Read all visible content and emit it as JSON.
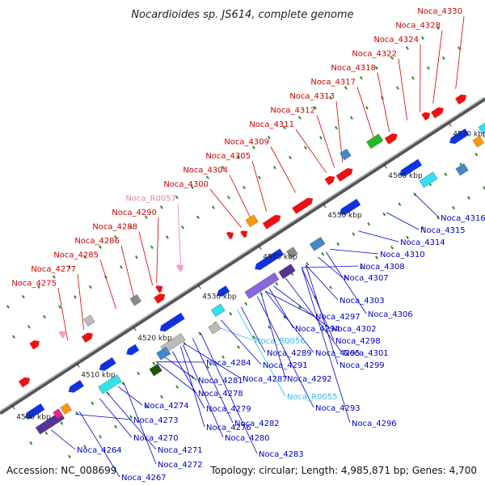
{
  "title": "Nocardioides sp. JS614, complete genome",
  "footer": {
    "accession": "Accession: NC_008699",
    "summary": "Topology: circular; Length: 4,985,871 bp; Genes: 4,700"
  },
  "colors": {
    "top_strand_label": "#cc0000",
    "bottom_strand_label": "#0000cc",
    "rna_top_label": "#e87fb0",
    "rna_bottom_label": "#33bbee"
  },
  "ticks": [
    "4500 kbp",
    "4510 kbp",
    "4520 kbp",
    "4530 kbp",
    "4540 kbp",
    "4550 kbp",
    "4560 kbp",
    "4570 kbp"
  ],
  "top_labels": [
    "Noca_4330",
    "Noca_4328",
    "Noca_4324",
    "Noca_4322",
    "Noca_4318",
    "Noca_4317",
    "Noca_4313",
    "Noca_4312",
    "Noca_4311",
    "Noca_4309",
    "Noca_4305",
    "Noca_4304",
    "Noca_4300",
    "Noca_R0057",
    "Noca_4290",
    "Noca_4288",
    "Noca_4286",
    "Noca_4285",
    "Noca_4277",
    "Noca_4275"
  ],
  "bottom_labels": [
    "Noca_4316",
    "Noca_4315",
    "Noca_4314",
    "Noca_4310",
    "Noca_4308",
    "Noca_4307",
    "Noca_4303",
    "Noca_4306",
    "Noca_4297",
    "Noca_4302",
    "Noca_4294",
    "Noca_4298",
    "Noca_R0056",
    "Noca_4295",
    "Noca_4301",
    "Noca_4289",
    "Noca_4299",
    "Noca_4291",
    "Noca_4284",
    "Noca_4287",
    "Noca_4292",
    "Noca_4281",
    "Noca_4278",
    "Noca_R0055",
    "Noca_4293",
    "Noca_4274",
    "Noca_4279",
    "Noca_4282",
    "Noca_4296",
    "Noca_4273",
    "Noca_4276",
    "Noca_4270",
    "Noca_4280",
    "Noca_4271",
    "Noca_4283",
    "Noca_4264",
    "Noca_4272",
    "Noca_4267"
  ]
}
